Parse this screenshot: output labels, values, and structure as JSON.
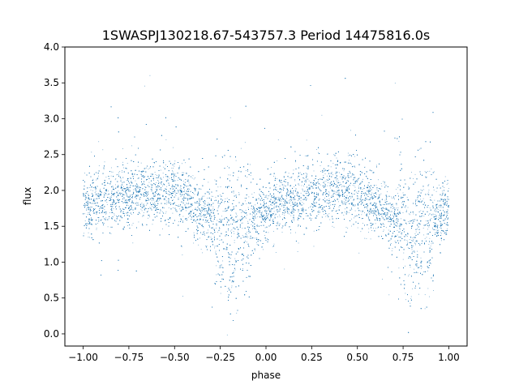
{
  "chart_data": {
    "type": "scatter",
    "title": "1SWASPJ130218.67-543757.3 Period 14475816.0s",
    "xlabel": "phase",
    "ylabel": "flux",
    "xlim": [
      -1.1,
      1.1
    ],
    "ylim": [
      -0.17,
      4.0
    ],
    "xticks": [
      -1.0,
      -0.75,
      -0.5,
      -0.25,
      0.0,
      0.25,
      0.5,
      0.75,
      1.0
    ],
    "xtick_labels": [
      "−1.00",
      "−0.75",
      "−0.50",
      "−0.25",
      "0.00",
      "0.25",
      "0.50",
      "0.75",
      "1.00"
    ],
    "yticks": [
      0.0,
      0.5,
      1.0,
      1.5,
      2.0,
      2.5,
      3.0,
      3.5,
      4.0
    ],
    "ytick_labels": [
      "0.0",
      "0.5",
      "1.0",
      "1.5",
      "2.0",
      "2.5",
      "3.0",
      "3.5",
      "4.0"
    ],
    "marker_color": "#1f77b4",
    "grid": false,
    "legend": "none",
    "series": [
      {
        "x_range": [
          -1.0,
          1.0
        ],
        "point_count": 16000,
        "note_profile": [
          {
            "phase": -1.0,
            "median_flux": 1.8
          },
          {
            "phase": -0.875,
            "median_flux": 1.85
          },
          {
            "phase": -0.75,
            "median_flux": 1.95
          },
          {
            "phase": -0.625,
            "median_flux": 2.0
          },
          {
            "phase": -0.5,
            "median_flux": 2.0
          },
          {
            "phase": -0.375,
            "median_flux": 1.75
          },
          {
            "phase": -0.25,
            "median_flux": 1.5
          },
          {
            "phase": -0.15,
            "median_flux": 1.4
          },
          {
            "phase": -0.1,
            "median_flux": 1.5
          },
          {
            "phase": 0.0,
            "median_flux": 1.75
          },
          {
            "phase": 0.125,
            "median_flux": 1.85
          },
          {
            "phase": 0.25,
            "median_flux": 1.95
          },
          {
            "phase": 0.375,
            "median_flux": 2.0
          },
          {
            "phase": 0.5,
            "median_flux": 2.0
          },
          {
            "phase": 0.625,
            "median_flux": 1.75
          },
          {
            "phase": 0.75,
            "median_flux": 1.5
          },
          {
            "phase": 0.85,
            "median_flux": 1.4
          },
          {
            "phase": 0.9,
            "median_flux": 1.5
          },
          {
            "phase": 1.0,
            "median_flux": 1.75
          }
        ]
      }
    ]
  }
}
